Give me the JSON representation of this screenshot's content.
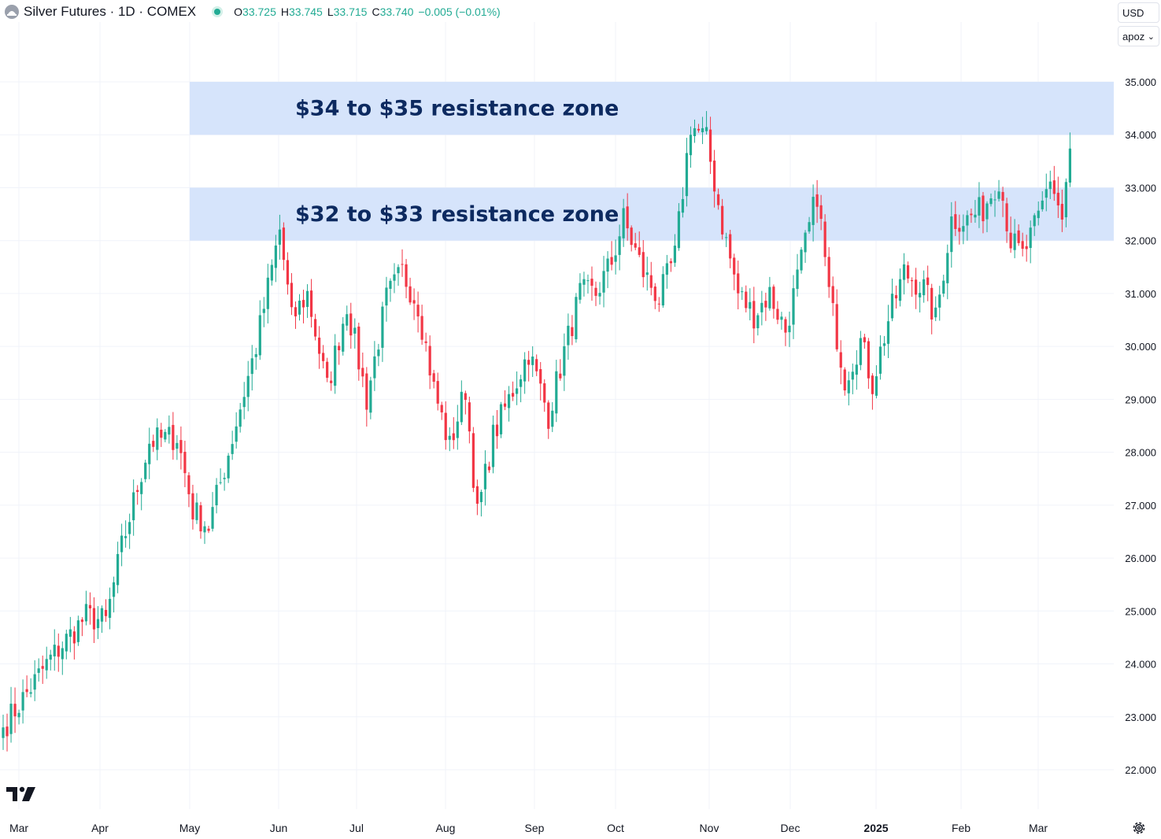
{
  "header": {
    "title": "Silver Futures · 1D · COMEX",
    "ohlc": [
      {
        "k": "O",
        "v": "33.725"
      },
      {
        "k": "H",
        "v": "33.745"
      },
      {
        "k": "L",
        "v": "33.715"
      },
      {
        "k": "C",
        "v": "33.740"
      },
      {
        "k": "",
        "v": "−0.005 (−0.01%)"
      }
    ]
  },
  "controls": {
    "currency": "USD",
    "unit": "apoz"
  },
  "icons": {
    "symbol": "silver-coin-icon",
    "status": "market-status-dot-icon",
    "logo": "tradingview-logo-icon",
    "settings": "gear-icon"
  },
  "colors": {
    "up": "#22ab94",
    "down": "#f23645",
    "zone_fill": "#d6e4fb",
    "zone_text": "#0d2a60"
  },
  "chart_data": {
    "type": "candlestick",
    "title": "Silver Futures · 1D · COMEX",
    "y_ticks": [
      "22.000",
      "23.000",
      "24.000",
      "25.000",
      "26.000",
      "27.000",
      "28.000",
      "29.000",
      "30.000",
      "31.000",
      "32.000",
      "33.000",
      "34.000",
      "35.000"
    ],
    "ylim": [
      21.3,
      35.7
    ],
    "x_ticks": [
      "Mar",
      "Apr",
      "May",
      "Jun",
      "Jul",
      "Aug",
      "Sep",
      "Oct",
      "Nov",
      "Dec",
      "2025",
      "Feb",
      "Mar"
    ],
    "annotations": [
      {
        "label": "$34 to $35 resistance zone",
        "y_low": 34,
        "y_high": 35,
        "start_after_tick": "May"
      },
      {
        "label": "$32 to $33 resistance zone",
        "y_low": 32,
        "y_high": 33,
        "start_after_tick": "May"
      }
    ],
    "close_anchors": [
      [
        0,
        22.8
      ],
      [
        12,
        24.1
      ],
      [
        21,
        24.9
      ],
      [
        26,
        24.8
      ],
      [
        30,
        26.2
      ],
      [
        37,
        28.2
      ],
      [
        44,
        28.3
      ],
      [
        48,
        26.9
      ],
      [
        52,
        26.6
      ],
      [
        56,
        27.7
      ],
      [
        64,
        30.0
      ],
      [
        70,
        32.2
      ],
      [
        73,
        30.5
      ],
      [
        77,
        31.0
      ],
      [
        82,
        29.2
      ],
      [
        87,
        30.8
      ],
      [
        92,
        29.0
      ],
      [
        97,
        30.9
      ],
      [
        101,
        31.4
      ],
      [
        105,
        30.8
      ],
      [
        109,
        29.2
      ],
      [
        113,
        28.1
      ],
      [
        117,
        29.2
      ],
      [
        120,
        26.8
      ],
      [
        124,
        28.3
      ],
      [
        128,
        29.0
      ],
      [
        133,
        29.9
      ],
      [
        138,
        28.7
      ],
      [
        142,
        29.9
      ],
      [
        146,
        31.0
      ],
      [
        150,
        31.0
      ],
      [
        154,
        31.6
      ],
      [
        157,
        32.4
      ],
      [
        162,
        31.4
      ],
      [
        166,
        30.9
      ],
      [
        170,
        31.7
      ],
      [
        174,
        34.2
      ],
      [
        178,
        33.9
      ],
      [
        182,
        32.3
      ],
      [
        186,
        31.0
      ],
      [
        190,
        30.6
      ],
      [
        194,
        31.0
      ],
      [
        198,
        30.3
      ],
      [
        202,
        31.6
      ],
      [
        206,
        32.9
      ],
      [
        209,
        31.0
      ],
      [
        213,
        29.4
      ],
      [
        217,
        30.1
      ],
      [
        220,
        29.3
      ],
      [
        224,
        30.5
      ],
      [
        228,
        31.4
      ],
      [
        233,
        31.1
      ],
      [
        236,
        30.5
      ],
      [
        240,
        32.4
      ],
      [
        244,
        32.4
      ],
      [
        248,
        32.6
      ],
      [
        252,
        33.2
      ],
      [
        255,
        32.0
      ],
      [
        258,
        31.7
      ],
      [
        262,
        32.4
      ],
      [
        265,
        33.2
      ],
      [
        268,
        32.4
      ],
      [
        270,
        33.74
      ]
    ]
  }
}
